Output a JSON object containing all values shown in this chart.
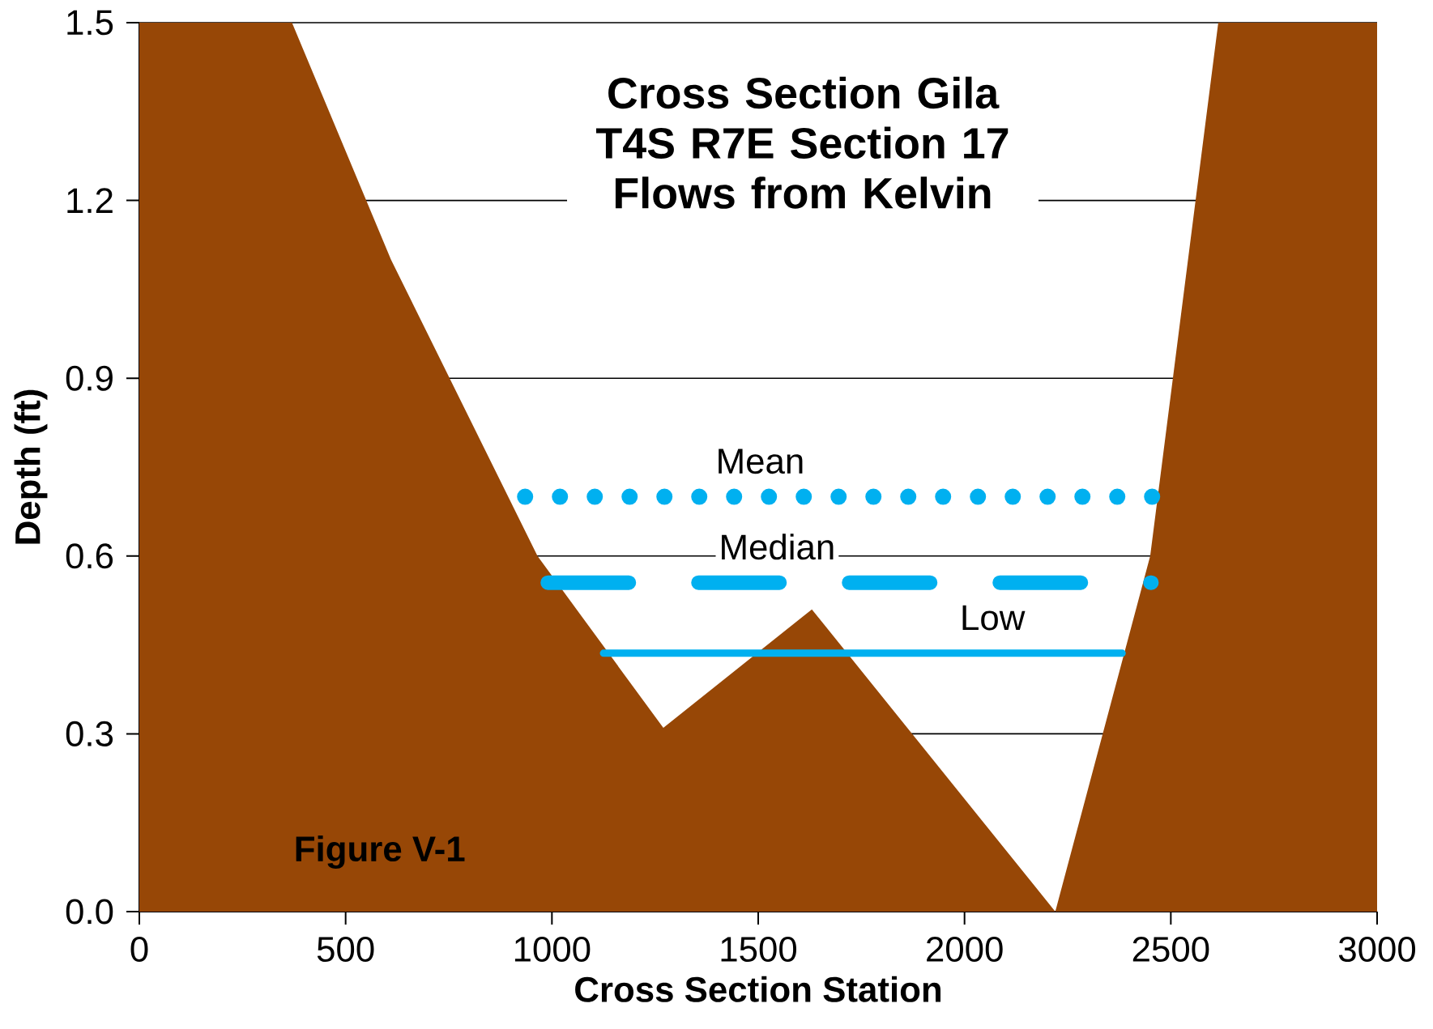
{
  "chart_data": {
    "type": "area",
    "title": "Cross Section Gila T4S R7E Section 17 Flows from Kelvin",
    "xlabel": "Cross Section Station",
    "ylabel": "Depth (ft)",
    "annotations": [
      "Figure V-1"
    ],
    "xlim": [
      0,
      3000
    ],
    "xticks": [
      0,
      500,
      1000,
      1500,
      2000,
      2500,
      3000
    ],
    "ylim": [
      0,
      1.5
    ],
    "yticks": [
      {
        "value": 0,
        "label": "0.0"
      },
      0.3,
      0.6,
      0.9,
      1.2,
      1.5
    ],
    "grid": "y",
    "series": [
      {
        "color": "#974706",
        "x": [
          0,
          370,
          610,
          965,
          1270,
          1630,
          2220,
          2450,
          2615,
          3000
        ],
        "values": [
          1.5,
          1.5,
          1.1,
          0.6,
          0.31,
          0.51,
          0,
          0.6,
          1.5,
          1.5
        ]
      },
      {
        "type": "line",
        "name": "Mean",
        "color": "#00b0f0",
        "line_style": "dotted",
        "x": [
          935,
          2475
        ],
        "values": [
          0.7,
          0.7
        ]
      },
      {
        "type": "line",
        "name": "Median",
        "color": "#00b0f0",
        "line_style": "dashed",
        "x": [
          990,
          2453
        ],
        "values": [
          0.555,
          0.555
        ]
      },
      {
        "type": "line",
        "name": "Low",
        "color": "#00b0f0",
        "line_style": "solid",
        "x": [
          1125,
          2382
        ],
        "values": [
          0.436,
          0.436
        ]
      }
    ]
  }
}
